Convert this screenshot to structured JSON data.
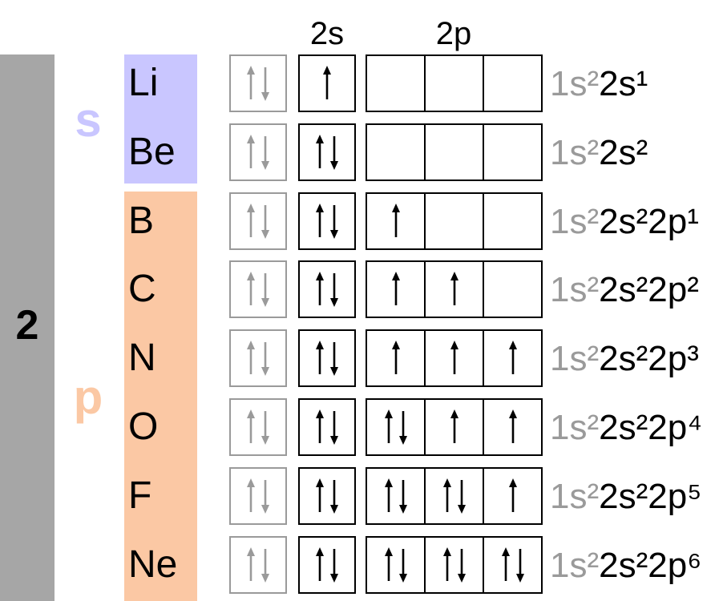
{
  "period": "2",
  "blocks": {
    "s": "s",
    "p": "p"
  },
  "colors": {
    "s_block": "#c9c6ff",
    "p_block": "#fbc8a4",
    "period_bar": "#a6a6a6",
    "s_letter": "#c9c6ff",
    "p_letter": "#fbc8a4"
  },
  "headers": {
    "s2": "2s",
    "p2": "2p"
  },
  "core": "1s²",
  "rows": [
    {
      "symbol": "Li",
      "s": "up",
      "p": [
        "",
        "",
        ""
      ],
      "config": "2s¹"
    },
    {
      "symbol": "Be",
      "s": "pair",
      "p": [
        "",
        "",
        ""
      ],
      "config": "2s²"
    },
    {
      "symbol": "B",
      "s": "pair",
      "p": [
        "up",
        "",
        ""
      ],
      "config": "2s²2p¹"
    },
    {
      "symbol": "C",
      "s": "pair",
      "p": [
        "up",
        "up",
        ""
      ],
      "config": "2s²2p²"
    },
    {
      "symbol": "N",
      "s": "pair",
      "p": [
        "up",
        "up",
        "up"
      ],
      "config": "2s²2p³"
    },
    {
      "symbol": "O",
      "s": "pair",
      "p": [
        "pair",
        "up",
        "up"
      ],
      "config": "2s²2p⁴"
    },
    {
      "symbol": "F",
      "s": "pair",
      "p": [
        "pair",
        "pair",
        "up"
      ],
      "config": "2s²2p⁵"
    },
    {
      "symbol": "Ne",
      "s": "pair",
      "p": [
        "pair",
        "pair",
        "pair"
      ],
      "config": "2s²2p⁶"
    }
  ]
}
